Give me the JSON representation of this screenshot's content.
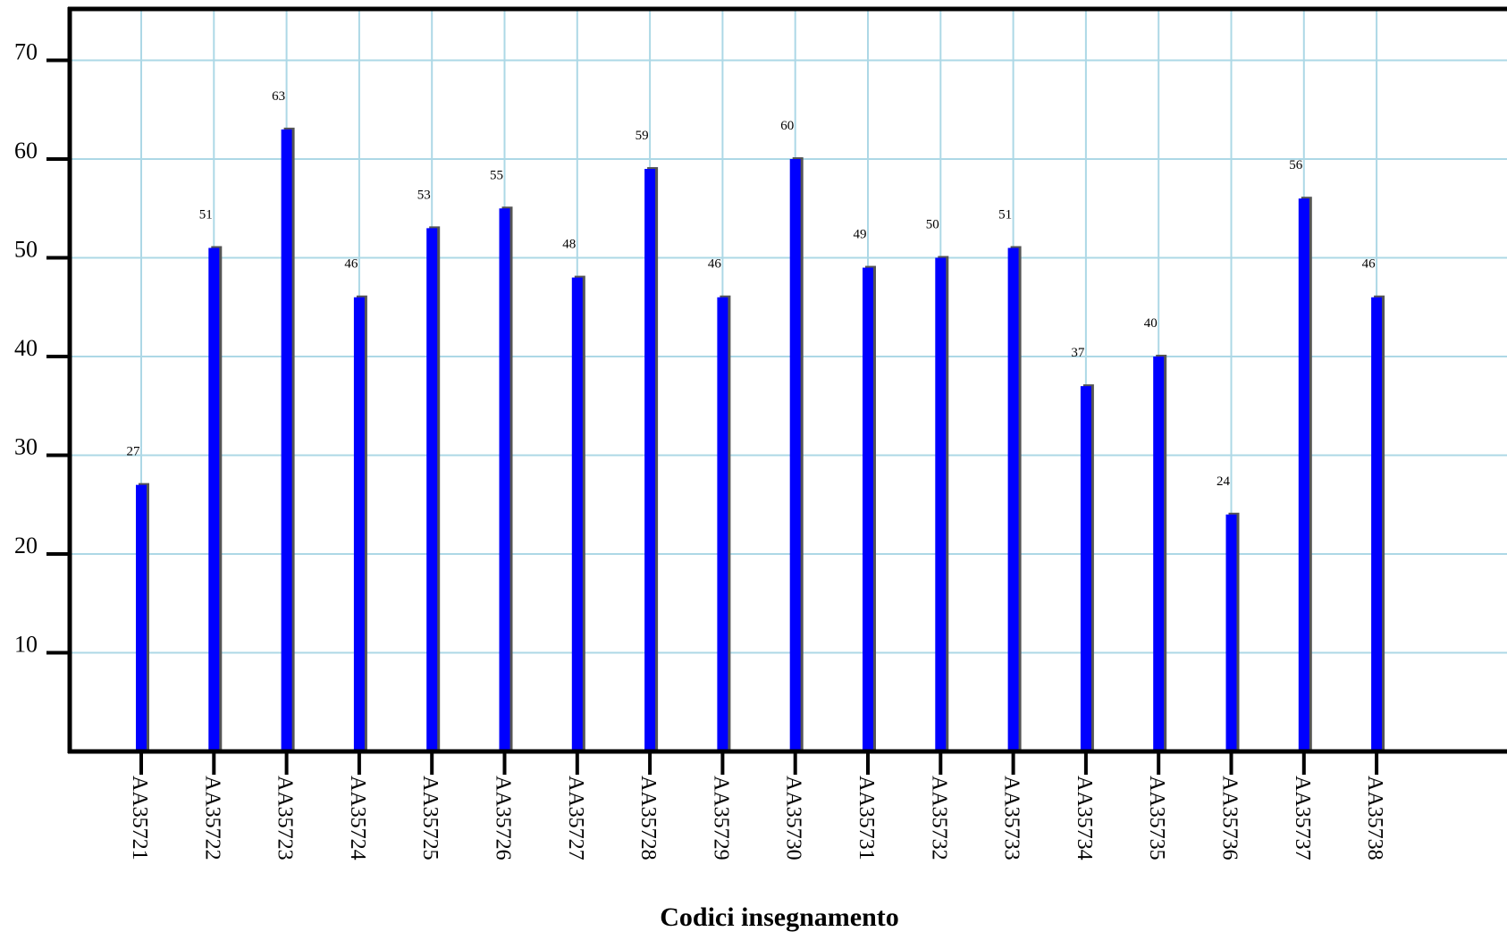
{
  "chart_data": {
    "type": "bar",
    "title": "",
    "xlabel": "Codici insegnamento",
    "ylabel": "",
    "ylim": [
      0,
      75
    ],
    "yticks": [
      10,
      20,
      30,
      40,
      50,
      60,
      70
    ],
    "grid": true,
    "categories": [
      "AA35721",
      "AA35722",
      "AA35723",
      "AA35724",
      "AA35725",
      "AA35726",
      "AA35727",
      "AA35728",
      "AA35729",
      "AA35730",
      "AA35731",
      "AA35732",
      "AA35733",
      "AA35734",
      "AA35735",
      "AA35736",
      "AA35737",
      "AA35738"
    ],
    "values": [
      27,
      51,
      63,
      46,
      53,
      55,
      48,
      59,
      46,
      60,
      49,
      50,
      51,
      37,
      40,
      24,
      56,
      46
    ],
    "colors": {
      "bar": "#0000ff",
      "bar_shadow": "#555555",
      "grid": "#add8e6",
      "axis": "#000000"
    }
  }
}
